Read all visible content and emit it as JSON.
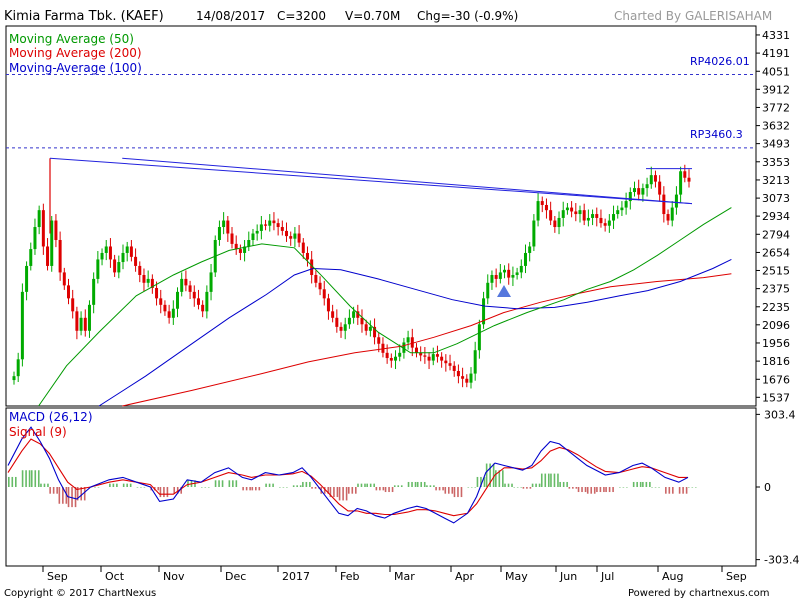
{
  "header": {
    "name": "Kimia Farma Tbk. (KAEF)",
    "date": "14/08/2017",
    "close": "C=3200",
    "volume": "V=0.70M",
    "change": "Chg=-30 (-0.9%)",
    "credit": "Charted By GALERISAHAM"
  },
  "footer": {
    "copyright": "Copyright © 2017 ChartNexus",
    "powered": "Powered by chartnexus.com"
  },
  "colors": {
    "up": "#00aa00",
    "down": "#dd0000",
    "ma50": "#009900",
    "ma200": "#dd0000",
    "ma100": "#0000cc",
    "trendline": "#2222dd",
    "macd": "#0000cc",
    "signal": "#dd0000"
  },
  "chart_data": [
    {
      "type": "candlestick",
      "ylim": [
        1470,
        4400
      ],
      "y_ticks": [
        4331,
        4191,
        4051,
        3912,
        3772,
        3632,
        3493,
        3353,
        3213,
        3073,
        2934,
        2794,
        2654,
        2515,
        2375,
        2235,
        2096,
        1956,
        1816,
        1676,
        1537
      ],
      "x_labels": [
        "Sep",
        "Oct",
        "Nov",
        "Dec",
        "2017",
        "Feb",
        "Mar",
        "Apr",
        "May",
        "Jun",
        "Jul",
        "Aug",
        "Sep"
      ],
      "legend": [
        {
          "label": "Moving Average (50)",
          "color": "#009900"
        },
        {
          "label": "Moving Average (200)",
          "color": "#dd0000"
        },
        {
          "label": "Moving-Average (100)",
          "color": "#0000cc"
        }
      ],
      "levels": [
        {
          "label": "RP4026.01",
          "value": 4026.01
        },
        {
          "label": "RP3460.3",
          "value": 3460.3
        }
      ],
      "trendline": {
        "from": [
          0.15,
          3380
        ],
        "to": [
          0.98,
          3030
        ]
      },
      "resistance": {
        "from": [
          0.915,
          3300
        ],
        "to": [
          0.98,
          3300
        ]
      },
      "closes": [
        1700,
        1830,
        2350,
        2550,
        2680,
        2850,
        2980,
        2700,
        2550,
        2900,
        2750,
        2500,
        2400,
        2300,
        2200,
        2050,
        2150,
        2050,
        2250,
        2450,
        2600,
        2650,
        2700,
        2600,
        2500,
        2580,
        2650,
        2700,
        2620,
        2550,
        2480,
        2420,
        2450,
        2380,
        2300,
        2250,
        2200,
        2150,
        2220,
        2350,
        2450,
        2400,
        2350,
        2300,
        2250,
        2200,
        2350,
        2500,
        2750,
        2850,
        2900,
        2800,
        2720,
        2680,
        2650,
        2700,
        2750,
        2800,
        2820,
        2870,
        2860,
        2900,
        2880,
        2850,
        2820,
        2780,
        2760,
        2800,
        2730,
        2650,
        2600,
        2480,
        2420,
        2370,
        2300,
        2200,
        2150,
        2080,
        2050,
        2100,
        2150,
        2200,
        2150,
        2100,
        2050,
        2080,
        2000,
        1950,
        1880,
        1840,
        1820,
        1850,
        1880,
        1960,
        2000,
        1920,
        1880,
        1860,
        1850,
        1820,
        1870,
        1850,
        1820,
        1800,
        1780,
        1740,
        1700,
        1680,
        1650,
        1720,
        1900,
        2100,
        2300,
        2420,
        2480,
        2450,
        2500,
        2520,
        2460,
        2480,
        2500,
        2550,
        2650,
        2700,
        2900,
        3050,
        3020,
        2980,
        2900,
        2850,
        2920,
        2980,
        3000,
        2970,
        2950,
        2980,
        2900,
        2920,
        2950,
        2920,
        2880,
        2860,
        2900,
        2950,
        2980,
        3000,
        3050,
        3120,
        3150,
        3100,
        3150,
        3180,
        3250,
        3200,
        3100,
        2950,
        2900,
        3000,
        3100,
        3280,
        3230,
        3200
      ],
      "ma50": [
        [
          0.07,
          1470
        ],
        [
          0.13,
          1780
        ],
        [
          0.2,
          2040
        ],
        [
          0.28,
          2320
        ],
        [
          0.36,
          2480
        ],
        [
          0.42,
          2580
        ],
        [
          0.48,
          2670
        ],
        [
          0.55,
          2720
        ],
        [
          0.62,
          2690
        ],
        [
          0.68,
          2470
        ],
        [
          0.74,
          2240
        ],
        [
          0.8,
          2040
        ],
        [
          0.87,
          1880
        ],
        [
          0.92,
          1880
        ],
        [
          0.97,
          1950
        ],
        [
          1.05,
          2090
        ],
        [
          1.12,
          2190
        ],
        [
          1.2,
          2290
        ],
        [
          1.25,
          2370
        ],
        [
          1.3,
          2430
        ],
        [
          1.35,
          2520
        ],
        [
          1.4,
          2630
        ],
        [
          1.45,
          2750
        ],
        [
          1.5,
          2870
        ],
        [
          1.56,
          3000
        ]
      ],
      "ma200": [
        [
          0.25,
          1470
        ],
        [
          0.4,
          1590
        ],
        [
          0.55,
          1720
        ],
        [
          0.65,
          1810
        ],
        [
          0.75,
          1880
        ],
        [
          0.85,
          1930
        ],
        [
          0.92,
          2000
        ],
        [
          1.0,
          2090
        ],
        [
          1.07,
          2190
        ],
        [
          1.15,
          2270
        ],
        [
          1.22,
          2330
        ],
        [
          1.3,
          2390
        ],
        [
          1.4,
          2430
        ],
        [
          1.5,
          2460
        ],
        [
          1.56,
          2490
        ]
      ],
      "ma100": [
        [
          0.2,
          1470
        ],
        [
          0.3,
          1700
        ],
        [
          0.4,
          1950
        ],
        [
          0.48,
          2150
        ],
        [
          0.56,
          2330
        ],
        [
          0.62,
          2480
        ],
        [
          0.66,
          2530
        ],
        [
          0.72,
          2520
        ],
        [
          0.8,
          2450
        ],
        [
          0.88,
          2370
        ],
        [
          0.96,
          2290
        ],
        [
          1.03,
          2240
        ],
        [
          1.1,
          2220
        ],
        [
          1.18,
          2230
        ],
        [
          1.25,
          2270
        ],
        [
          1.32,
          2320
        ],
        [
          1.38,
          2360
        ],
        [
          1.45,
          2430
        ],
        [
          1.52,
          2530
        ],
        [
          1.56,
          2600
        ]
      ]
    },
    {
      "type": "macd",
      "title": "MACD (26,12)",
      "signal_label": "Signal (9)",
      "ylim": [
        -330,
        330
      ],
      "y_ticks": [
        303.4,
        0,
        -303.4
      ],
      "macd": [
        [
          0,
          90
        ],
        [
          0.03,
          200
        ],
        [
          0.05,
          250
        ],
        [
          0.07,
          190
        ],
        [
          0.09,
          120
        ],
        [
          0.11,
          30
        ],
        [
          0.13,
          -40
        ],
        [
          0.15,
          -50
        ],
        [
          0.18,
          0
        ],
        [
          0.22,
          30
        ],
        [
          0.25,
          40
        ],
        [
          0.28,
          20
        ],
        [
          0.31,
          0
        ],
        [
          0.33,
          -60
        ],
        [
          0.36,
          -50
        ],
        [
          0.39,
          30
        ],
        [
          0.42,
          20
        ],
        [
          0.45,
          60
        ],
        [
          0.48,
          80
        ],
        [
          0.51,
          40
        ],
        [
          0.53,
          30
        ],
        [
          0.56,
          60
        ],
        [
          0.59,
          50
        ],
        [
          0.62,
          60
        ],
        [
          0.64,
          80
        ],
        [
          0.66,
          40
        ],
        [
          0.68,
          -10
        ],
        [
          0.7,
          -60
        ],
        [
          0.72,
          -110
        ],
        [
          0.74,
          -120
        ],
        [
          0.76,
          -90
        ],
        [
          0.78,
          -100
        ],
        [
          0.8,
          -120
        ],
        [
          0.82,
          -130
        ],
        [
          0.84,
          -110
        ],
        [
          0.87,
          -90
        ],
        [
          0.89,
          -80
        ],
        [
          0.91,
          -90
        ],
        [
          0.93,
          -110
        ],
        [
          0.95,
          -130
        ],
        [
          0.97,
          -150
        ],
        [
          1.0,
          -110
        ],
        [
          1.02,
          -40
        ],
        [
          1.04,
          60
        ],
        [
          1.06,
          100
        ],
        [
          1.08,
          90
        ],
        [
          1.1,
          80
        ],
        [
          1.12,
          70
        ],
        [
          1.14,
          90
        ],
        [
          1.16,
          150
        ],
        [
          1.18,
          190
        ],
        [
          1.2,
          180
        ],
        [
          1.22,
          150
        ],
        [
          1.24,
          120
        ],
        [
          1.26,
          90
        ],
        [
          1.28,
          70
        ],
        [
          1.3,
          50
        ],
        [
          1.33,
          60
        ],
        [
          1.36,
          90
        ],
        [
          1.38,
          100
        ],
        [
          1.4,
          80
        ],
        [
          1.43,
          40
        ],
        [
          1.46,
          20
        ],
        [
          1.48,
          40
        ]
      ],
      "signal": [
        [
          0,
          60
        ],
        [
          0.03,
          150
        ],
        [
          0.05,
          200
        ],
        [
          0.07,
          180
        ],
        [
          0.09,
          140
        ],
        [
          0.11,
          80
        ],
        [
          0.13,
          20
        ],
        [
          0.15,
          -10
        ],
        [
          0.18,
          0
        ],
        [
          0.22,
          20
        ],
        [
          0.25,
          30
        ],
        [
          0.28,
          20
        ],
        [
          0.31,
          10
        ],
        [
          0.33,
          -30
        ],
        [
          0.36,
          -30
        ],
        [
          0.39,
          10
        ],
        [
          0.42,
          20
        ],
        [
          0.45,
          40
        ],
        [
          0.48,
          60
        ],
        [
          0.51,
          50
        ],
        [
          0.53,
          40
        ],
        [
          0.56,
          50
        ],
        [
          0.59,
          50
        ],
        [
          0.62,
          55
        ],
        [
          0.64,
          65
        ],
        [
          0.66,
          45
        ],
        [
          0.68,
          10
        ],
        [
          0.7,
          -30
        ],
        [
          0.72,
          -70
        ],
        [
          0.74,
          -100
        ],
        [
          0.76,
          -100
        ],
        [
          0.78,
          -110
        ],
        [
          0.8,
          -110
        ],
        [
          0.82,
          -115
        ],
        [
          0.84,
          -115
        ],
        [
          0.87,
          -105
        ],
        [
          0.89,
          -95
        ],
        [
          0.91,
          -95
        ],
        [
          0.93,
          -100
        ],
        [
          0.95,
          -110
        ],
        [
          0.97,
          -120
        ],
        [
          1.0,
          -110
        ],
        [
          1.02,
          -70
        ],
        [
          1.04,
          -10
        ],
        [
          1.06,
          50
        ],
        [
          1.08,
          80
        ],
        [
          1.1,
          80
        ],
        [
          1.12,
          75
        ],
        [
          1.14,
          80
        ],
        [
          1.16,
          110
        ],
        [
          1.18,
          150
        ],
        [
          1.2,
          165
        ],
        [
          1.22,
          155
        ],
        [
          1.24,
          135
        ],
        [
          1.26,
          110
        ],
        [
          1.28,
          85
        ],
        [
          1.3,
          65
        ],
        [
          1.33,
          60
        ],
        [
          1.36,
          75
        ],
        [
          1.38,
          85
        ],
        [
          1.4,
          80
        ],
        [
          1.43,
          60
        ],
        [
          1.46,
          40
        ],
        [
          1.48,
          40
        ]
      ]
    }
  ]
}
